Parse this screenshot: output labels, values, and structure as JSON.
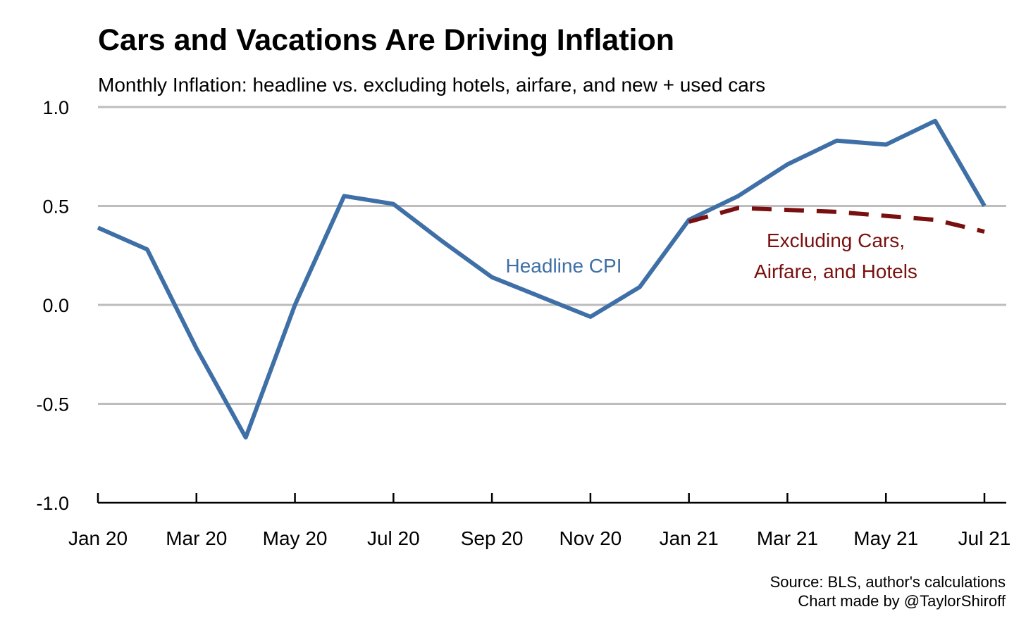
{
  "chart_data": {
    "type": "line",
    "title": "Cars and Vacations Are Driving Inflation",
    "subtitle": "Monthly Inflation: headline vs. excluding hotels, airfare, and new + used cars",
    "xlabel": "",
    "ylabel": "",
    "ylim": [
      -1.0,
      1.0
    ],
    "yticks": [
      "1.0",
      "0.5",
      "0.0",
      "-0.5",
      "-1.0"
    ],
    "ytick_values": [
      1.0,
      0.5,
      0.0,
      -0.5,
      -1.0
    ],
    "months": [
      "Jan 20",
      "Feb 20",
      "Mar 20",
      "Apr 20",
      "May 20",
      "Jun 20",
      "Jul 20",
      "Aug 20",
      "Sep 20",
      "Oct 20",
      "Nov 20",
      "Dec 20",
      "Jan 21",
      "Feb 21",
      "Mar 21",
      "Apr 21",
      "May 21",
      "Jun 21",
      "Jul 21"
    ],
    "xtick_labels": [
      "Jan 20",
      "Mar 20",
      "May 20",
      "Jul 20",
      "Sep 20",
      "Nov 20",
      "Jan 21",
      "Mar 21",
      "May 21",
      "Jul 21"
    ],
    "grid": true,
    "series": [
      {
        "name": "Headline CPI",
        "color": "#3e6fa6",
        "style": "solid",
        "x": [
          "Jan 20",
          "Feb 20",
          "Mar 20",
          "Apr 20",
          "May 20",
          "Jun 20",
          "Jul 20",
          "Aug 20",
          "Sep 20",
          "Oct 20",
          "Nov 20",
          "Dec 20",
          "Jan 21",
          "Feb 21",
          "Mar 21",
          "Apr 21",
          "May 21",
          "Jun 21",
          "Jul 21"
        ],
        "values": [
          0.39,
          0.28,
          -0.22,
          -0.67,
          0.0,
          0.55,
          0.51,
          0.32,
          0.14,
          0.04,
          -0.06,
          0.09,
          0.43,
          0.55,
          0.71,
          0.83,
          0.81,
          0.93,
          0.5
        ]
      },
      {
        "name": "Excluding Cars, Airfare, and Hotels",
        "color": "#7a0f0f",
        "style": "dashed",
        "x": [
          "Jan 21",
          "Feb 21",
          "Mar 21",
          "Apr 21",
          "May 21",
          "Jun 21",
          "Jul 21"
        ],
        "values": [
          0.42,
          0.49,
          0.48,
          0.47,
          0.45,
          0.43,
          0.37
        ]
      }
    ],
    "annotations": {
      "headline_label": "Headline CPI",
      "excl_label_line1": "Excluding Cars,",
      "excl_label_line2": "Airfare, and Hotels"
    },
    "source_line1": "Source: BLS, author's calculations",
    "source_line2": "Chart made by @TaylorShiroff"
  }
}
